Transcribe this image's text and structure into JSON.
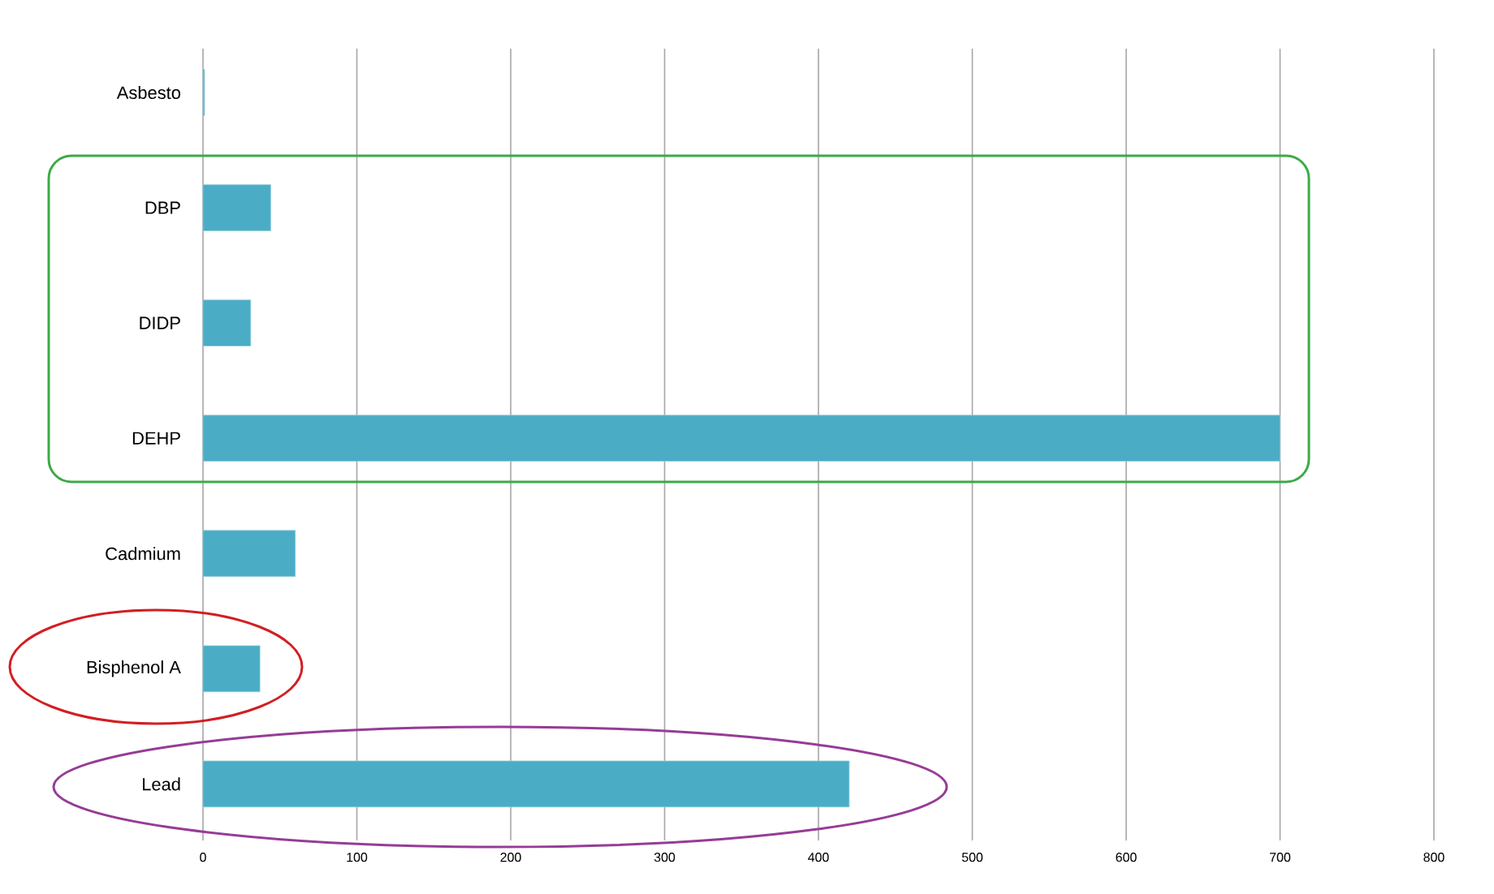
{
  "chart_data": {
    "type": "bar",
    "orientation": "horizontal",
    "categories": [
      "Asbesto",
      "DBP",
      "DIDP",
      "DEHP",
      "Cadmium",
      "Bisphenol A",
      "Lead"
    ],
    "values": [
      1,
      44,
      31,
      700,
      60,
      37,
      420
    ],
    "color": "#4bacc6",
    "xlim": [
      0,
      800
    ],
    "xticks": [
      0,
      100,
      200,
      300,
      400,
      500,
      600,
      700,
      800
    ],
    "grid": "x"
  }
}
